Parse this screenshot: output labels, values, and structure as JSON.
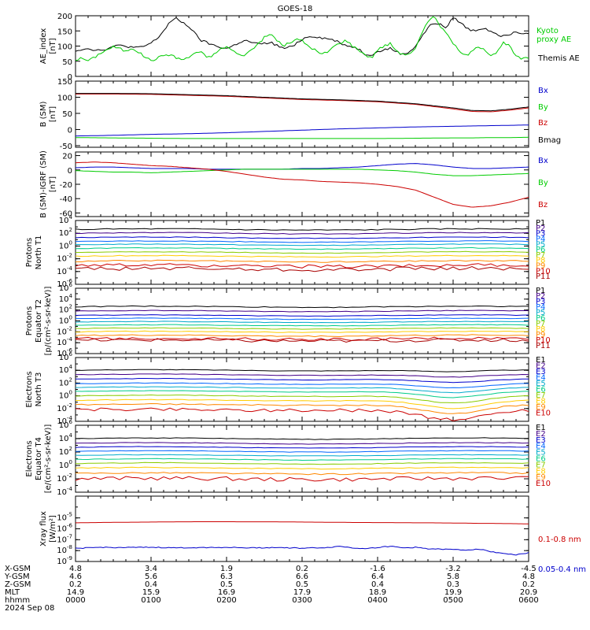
{
  "title": "GOES-18",
  "chart_data": [
    {
      "type": "line",
      "ylabel": [
        "AE_index",
        "[nT]"
      ],
      "ylim": [
        0,
        200
      ],
      "yticks": [
        "0",
        "50",
        "100",
        "150",
        "200"
      ],
      "x": [
        0,
        5,
        10,
        15,
        20,
        25,
        30,
        35,
        40,
        45,
        50,
        55,
        60,
        65,
        70,
        75,
        80,
        85,
        90,
        95,
        100,
        105,
        110,
        115,
        120,
        125,
        130,
        135,
        140,
        145,
        150,
        155,
        160,
        165,
        170,
        175,
        180,
        185,
        190,
        195,
        200,
        205,
        210,
        215,
        220,
        225,
        230,
        235,
        240,
        245,
        250,
        255,
        260,
        265,
        270,
        275,
        280,
        285,
        290,
        295,
        300,
        305,
        310,
        315,
        320,
        325,
        330,
        335,
        340,
        345,
        350,
        355,
        360
      ],
      "series": [
        {
          "name": "Themis AE",
          "color": "#000000",
          "values": [
            85,
            90,
            92,
            88,
            86,
            92,
            98,
            102,
            100,
            96,
            94,
            100,
            110,
            125,
            150,
            180,
            190,
            178,
            165,
            140,
            118,
            110,
            102,
            96,
            92,
            100,
            112,
            118,
            112,
            106,
            108,
            112,
            102,
            92,
            96,
            108,
            122,
            132,
            132,
            128,
            124,
            120,
            112,
            102,
            98,
            90,
            74,
            72,
            80,
            88,
            92,
            82,
            72,
            80,
            100,
            130,
            160,
            178,
            170,
            160,
            195,
            180,
            162,
            150,
            155,
            160,
            150,
            140,
            132,
            140,
            150,
            142,
            145
          ]
        },
        {
          "name": "Kyoto proxy AE",
          "color": "#00cc00",
          "values": [
            55,
            60,
            52,
            62,
            78,
            88,
            98,
            92,
            82,
            95,
            80,
            65,
            52,
            60,
            70,
            72,
            62,
            55,
            62,
            80,
            78,
            62,
            72,
            90,
            98,
            85,
            70,
            72,
            88,
            108,
            128,
            140,
            120,
            100,
            110,
            122,
            118,
            100,
            88,
            72,
            80,
            98,
            110,
            120,
            100,
            88,
            72,
            60,
            88,
            100,
            108,
            85,
            72,
            75,
            90,
            140,
            180,
            205,
            160,
            145,
            110,
            80,
            70,
            80,
            100,
            90,
            70,
            80,
            110,
            100,
            65,
            58,
            60
          ]
        }
      ],
      "labels": [
        {
          "text": "Kyoto",
          "color": "#00cc00"
        },
        {
          "text": "proxy AE",
          "color": "#00cc00"
        },
        {
          "text": "Themis AE",
          "color": "#000000"
        }
      ]
    },
    {
      "type": "line",
      "ylabel": [
        "B (SM)",
        "[nT]"
      ],
      "ylim": [
        -55,
        150
      ],
      "yticks": [
        "-50",
        "0",
        "50",
        "100",
        "150"
      ],
      "x": [
        0,
        30,
        60,
        90,
        120,
        150,
        180,
        210,
        240,
        270,
        300,
        315,
        330,
        345,
        360
      ],
      "series": [
        {
          "name": "Bx",
          "color": "#0000cc",
          "values": [
            -20,
            -18,
            -15,
            -13,
            -10,
            -6,
            -2,
            2,
            5,
            8,
            10,
            11,
            12,
            13,
            14
          ]
        },
        {
          "name": "By",
          "color": "#00cc00",
          "values": [
            -25,
            -26,
            -27,
            -28,
            -28,
            -28,
            -28,
            -28,
            -28,
            -27,
            -26,
            -26,
            -25,
            -25,
            -24
          ]
        },
        {
          "name": "Bz",
          "color": "#cc0000",
          "values": [
            110,
            110,
            109,
            106,
            103,
            98,
            93,
            90,
            86,
            78,
            64,
            56,
            55,
            60,
            67
          ]
        },
        {
          "name": "Bmag",
          "color": "#000000",
          "values": [
            112,
            112,
            111,
            108,
            105,
            100,
            95,
            92,
            88,
            80,
            67,
            59,
            58,
            63,
            70
          ]
        }
      ],
      "labels": [
        {
          "text": "Bx",
          "color": "#0000cc"
        },
        {
          "text": "By",
          "color": "#00cc00"
        },
        {
          "text": "Bz",
          "color": "#cc0000"
        },
        {
          "text": "Bmag",
          "color": "#000000"
        }
      ]
    },
    {
      "type": "line",
      "ylabel": [
        "B (SM)-IGRF (SM)",
        "[nT]"
      ],
      "ylim": [
        -65,
        25
      ],
      "yticks": [
        "-60",
        "-40",
        "-20",
        "0",
        "20"
      ],
      "x": [
        0,
        15,
        30,
        45,
        60,
        75,
        90,
        105,
        120,
        135,
        150,
        165,
        180,
        195,
        210,
        225,
        240,
        255,
        270,
        285,
        300,
        315,
        330,
        345,
        360
      ],
      "series": [
        {
          "name": "Bx",
          "color": "#0000cc",
          "values": [
            3,
            4,
            4,
            3,
            2,
            2,
            2,
            1,
            1,
            1,
            1,
            1,
            2,
            2,
            3,
            4,
            6,
            8,
            9,
            7,
            4,
            2,
            2,
            3,
            4
          ]
        },
        {
          "name": "By",
          "color": "#00cc00",
          "values": [
            -1,
            -2,
            -3,
            -3,
            -4,
            -3,
            -2,
            -1,
            0,
            1,
            1,
            1,
            1,
            1,
            1,
            1,
            0,
            -1,
            -3,
            -6,
            -8,
            -8,
            -7,
            -6,
            -5
          ]
        },
        {
          "name": "Bz",
          "color": "#cc0000",
          "values": [
            10,
            11,
            10,
            8,
            6,
            5,
            3,
            1,
            -2,
            -6,
            -10,
            -13,
            -14,
            -16,
            -17,
            -18,
            -20,
            -23,
            -28,
            -38,
            -48,
            -52,
            -50,
            -45,
            -38
          ]
        }
      ],
      "labels": [
        {
          "text": "Bx",
          "color": "#0000cc"
        },
        {
          "text": "By",
          "color": "#00cc00"
        },
        {
          "text": "Bz",
          "color": "#cc0000"
        }
      ]
    },
    {
      "type": "line",
      "scale": "log",
      "ylabel": [
        "Protons",
        "North T1"
      ],
      "ylog": [
        -6,
        4
      ],
      "yticks": [
        "10^-6",
        "10^-4",
        "10^-2",
        "10^0",
        "10^2",
        "10^4"
      ],
      "series": [
        {
          "name": "P1",
          "color": "#000000",
          "level": 2.6,
          "noise": 0.08
        },
        {
          "name": "P2",
          "color": "#440088",
          "level": 2.0,
          "noise": 0.06
        },
        {
          "name": "P3",
          "color": "#0000cc",
          "level": 1.3,
          "noise": 0.05
        },
        {
          "name": "P4",
          "color": "#0066ff",
          "level": 0.7,
          "noise": 0.05
        },
        {
          "name": "P5",
          "color": "#00aacc",
          "level": 0.2,
          "noise": 0.05
        },
        {
          "name": "P6",
          "color": "#00cc88",
          "level": -0.4,
          "noise": 0.05
        },
        {
          "name": "P7",
          "color": "#88cc00",
          "level": -1.0,
          "noise": 0.05
        },
        {
          "name": "P8",
          "color": "#ffcc00",
          "level": -1.6,
          "noise": 0.06
        },
        {
          "name": "P9",
          "color": "#ff8800",
          "level": -2.4,
          "noise": 0.1
        },
        {
          "name": "P10",
          "color": "#cc0000",
          "level": -3.1,
          "noise": 0.25
        },
        {
          "name": "P11",
          "color": "#aa0000",
          "level": -3.6,
          "noise": 0.3
        }
      ]
    },
    {
      "type": "line",
      "scale": "log",
      "ylabel": [
        "Protons",
        "Equator T2",
        "[p/(cm²-s-sr-keV)]"
      ],
      "ylog": [
        -6,
        6
      ],
      "yticks": [
        "10^-6",
        "10^-4",
        "10^-2",
        "10^0",
        "10^2",
        "10^4",
        "10^6"
      ],
      "series": [
        {
          "name": "P1",
          "color": "#000000",
          "level": 2.6,
          "noise": 0.08
        },
        {
          "name": "P2",
          "color": "#440088",
          "level": 1.8,
          "noise": 0.06
        },
        {
          "name": "P3",
          "color": "#0000cc",
          "level": 1.0,
          "noise": 0.05
        },
        {
          "name": "P4",
          "color": "#0066ff",
          "level": 0.4,
          "noise": 0.05
        },
        {
          "name": "P5",
          "color": "#00aacc",
          "level": -0.2,
          "noise": 0.05
        },
        {
          "name": "P6",
          "color": "#00cc88",
          "level": -0.8,
          "noise": 0.05
        },
        {
          "name": "P7",
          "color": "#88cc00",
          "level": -1.4,
          "noise": 0.05
        },
        {
          "name": "P8",
          "color": "#ffcc00",
          "level": -2.0,
          "noise": 0.06
        },
        {
          "name": "P9",
          "color": "#ff8800",
          "level": -2.7,
          "noise": 0.1
        },
        {
          "name": "P10",
          "color": "#cc0000",
          "level": -3.3,
          "noise": 0.25
        },
        {
          "name": "P11",
          "color": "#aa0000",
          "level": -3.6,
          "noise": 0.3
        }
      ]
    },
    {
      "type": "line",
      "scale": "log",
      "ylabel": [
        "Electrons",
        "North T3"
      ],
      "ylog": [
        -4,
        6
      ],
      "yticks": [
        "10^-4",
        "10^-2",
        "10^0",
        "10^2",
        "10^4",
        "10^6"
      ],
      "dip": true,
      "series": [
        {
          "name": "E1",
          "color": "#000000",
          "level": 4.0,
          "noise": 0.04
        },
        {
          "name": "E2",
          "color": "#440088",
          "level": 3.3,
          "noise": 0.04
        },
        {
          "name": "E3",
          "color": "#0000cc",
          "level": 2.6,
          "noise": 0.04
        },
        {
          "name": "E4",
          "color": "#0066ff",
          "level": 1.9,
          "noise": 0.04
        },
        {
          "name": "E5",
          "color": "#00aacc",
          "level": 1.3,
          "noise": 0.04
        },
        {
          "name": "E6",
          "color": "#00cc88",
          "level": 0.7,
          "noise": 0.04
        },
        {
          "name": "E7",
          "color": "#88cc00",
          "level": 0.0,
          "noise": 0.05
        },
        {
          "name": "E8",
          "color": "#ffcc00",
          "level": -0.7,
          "noise": 0.06
        },
        {
          "name": "E9",
          "color": "#ff8800",
          "level": -1.4,
          "noise": 0.1
        },
        {
          "name": "E10",
          "color": "#cc0000",
          "level": -2.2,
          "noise": 0.25
        }
      ]
    },
    {
      "type": "line",
      "scale": "log",
      "ylabel": [
        "Electrons",
        "Equator T4",
        "[e/(cm²-s-sr-keV)]"
      ],
      "ylog": [
        -4,
        6
      ],
      "yticks": [
        "10^-4",
        "10^-2",
        "10^0",
        "10^2",
        "10^4",
        "10^6"
      ],
      "series": [
        {
          "name": "E1",
          "color": "#000000",
          "level": 4.0,
          "noise": 0.04
        },
        {
          "name": "E2",
          "color": "#440088",
          "level": 3.3,
          "noise": 0.04
        },
        {
          "name": "E3",
          "color": "#0000cc",
          "level": 2.7,
          "noise": 0.04
        },
        {
          "name": "E4",
          "color": "#0066ff",
          "level": 2.1,
          "noise": 0.04
        },
        {
          "name": "E5",
          "color": "#00aacc",
          "level": 1.5,
          "noise": 0.04
        },
        {
          "name": "E6",
          "color": "#00cc88",
          "level": 0.9,
          "noise": 0.04
        },
        {
          "name": "E7",
          "color": "#88cc00",
          "level": 0.3,
          "noise": 0.05
        },
        {
          "name": "E8",
          "color": "#ffcc00",
          "level": -0.4,
          "noise": 0.06
        },
        {
          "name": "E9",
          "color": "#ff8800",
          "level": -1.2,
          "noise": 0.1
        },
        {
          "name": "E10",
          "color": "#cc0000",
          "level": -2.0,
          "noise": 0.3
        }
      ]
    },
    {
      "type": "line",
      "scale": "log",
      "ylabel": [
        "Xray flux",
        "[W/m²]"
      ],
      "ylog": [
        -9,
        -3
      ],
      "yticks": [
        "10^-9",
        "10^-8",
        "10^-7",
        "10^-6",
        "10^-5"
      ],
      "x": [
        0,
        20,
        40,
        60,
        80,
        100,
        120,
        140,
        160,
        180,
        200,
        210,
        220,
        230,
        240,
        250,
        260,
        270,
        280,
        290,
        300,
        310,
        320,
        330,
        340,
        350,
        360
      ],
      "series": [
        {
          "name": "0.1-0.8 nm",
          "color": "#cc0000",
          "values": [
            -5.45,
            -5.42,
            -5.4,
            -5.38,
            -5.36,
            -5.35,
            -5.35,
            -5.36,
            -5.36,
            -5.38,
            -5.4,
            -5.4,
            -5.42,
            -5.42,
            -5.43,
            -5.43,
            -5.44,
            -5.45,
            -5.45,
            -5.46,
            -5.47,
            -5.48,
            -5.5,
            -5.5,
            -5.52,
            -5.53,
            -5.55
          ]
        },
        {
          "name": "0.05-0.4 nm",
          "color": "#0000cc",
          "values": [
            -7.8,
            -7.7,
            -7.72,
            -7.7,
            -7.75,
            -7.72,
            -7.7,
            -7.75,
            -7.72,
            -7.78,
            -7.72,
            -7.6,
            -7.75,
            -7.8,
            -7.72,
            -7.6,
            -7.75,
            -7.7,
            -7.82,
            -7.88,
            -7.9,
            -7.95,
            -7.85,
            -8.1,
            -8.25,
            -8.4,
            -8.2
          ]
        }
      ],
      "labels": [
        {
          "text": "0.1-0.8 nm",
          "color": "#cc0000"
        },
        {
          "text": "0.05-0.4 nm",
          "color": "#0000cc"
        }
      ]
    }
  ],
  "ephemeris": {
    "row_labels": [
      "X-GSM",
      "Y-GSM",
      "Z-GSM",
      "MLT",
      "hhmm",
      "2024 Sep 08"
    ],
    "columns": [
      [
        "4.8",
        "4.6",
        "0.2",
        "14.9",
        "0000"
      ],
      [
        "3.4",
        "5.6",
        "0.4",
        "15.9",
        "0100"
      ],
      [
        "1.9",
        "6.3",
        "0.5",
        "16.9",
        "0200"
      ],
      [
        "0.2",
        "6.6",
        "0.5",
        "17.9",
        "0300"
      ],
      [
        "-1.6",
        "6.4",
        "0.4",
        "18.9",
        "0400"
      ],
      [
        "-3.2",
        "5.8",
        "0.3",
        "19.9",
        "0500"
      ],
      [
        "-4.5",
        "4.8",
        "0.2",
        "20.9",
        "0600"
      ]
    ]
  }
}
